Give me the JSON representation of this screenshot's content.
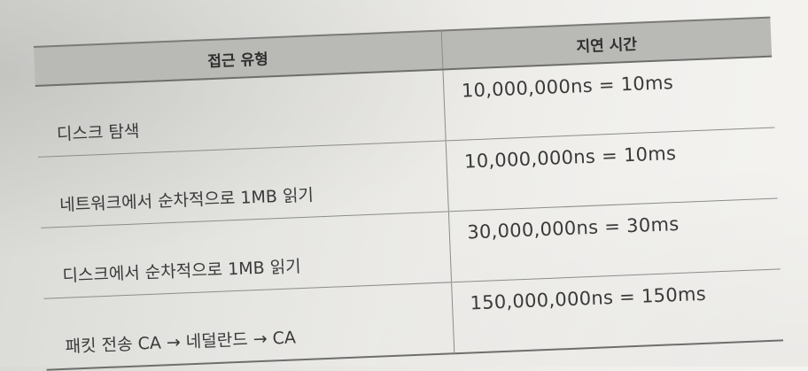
{
  "table": {
    "headers": [
      "접근 유형",
      "지연 시간"
    ],
    "rows": [
      {
        "type": "디스크 탐색",
        "latency": "10,000,000ns = 10ms"
      },
      {
        "type": "네트워크에서 순차적으로 1MB 읽기",
        "latency": "10,000,000ns = 10ms"
      },
      {
        "type": "디스크에서 순차적으로 1MB 읽기",
        "latency": "30,000,000ns = 30ms"
      },
      {
        "type": "패킷 전송 CA → 네덜란드 → CA",
        "latency": "150,000,000ns = 150ms"
      }
    ]
  },
  "colors": {
    "header_bg": "#b9b9b6",
    "text": "#3a3a3a",
    "rule": "#8c8c8a"
  }
}
